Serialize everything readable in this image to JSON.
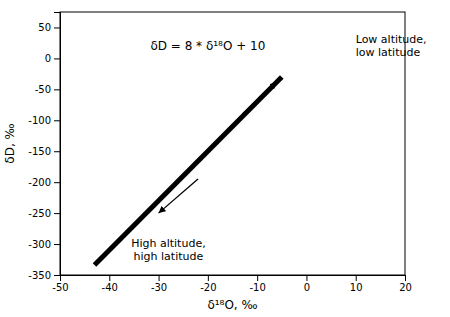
{
  "chart_data": {
    "type": "line",
    "xlabel": "δ¹⁸O, ‰",
    "ylabel": "δD, ‰",
    "x": [
      -43,
      -5
    ],
    "values": [
      -334,
      -30
    ],
    "color": "#000000",
    "xlim": [
      -50,
      20
    ],
    "ylim": [
      -350,
      75
    ],
    "xticks": [
      -50,
      -40,
      -30,
      -20,
      -10,
      0,
      10,
      20
    ],
    "yticks": [
      -350,
      -300,
      -250,
      -200,
      -150,
      -100,
      -50,
      0,
      50
    ],
    "grid": false,
    "annotations": [
      {
        "text": "δD = 8 * δ¹⁸O + 10",
        "x": -20,
        "y": 20
      },
      {
        "text": "Low altitude,\nlow latitude",
        "x": 10,
        "y": 20
      },
      {
        "text": "High altitude,\nhigh latitude",
        "x": -28,
        "y": -290
      }
    ],
    "arrows": [
      {
        "x": [
          -13,
          -6
        ],
        "y": [
          -90,
          -38
        ]
      },
      {
        "x": [
          -22,
          -30
        ],
        "y": [
          -195,
          -250
        ]
      }
    ]
  }
}
